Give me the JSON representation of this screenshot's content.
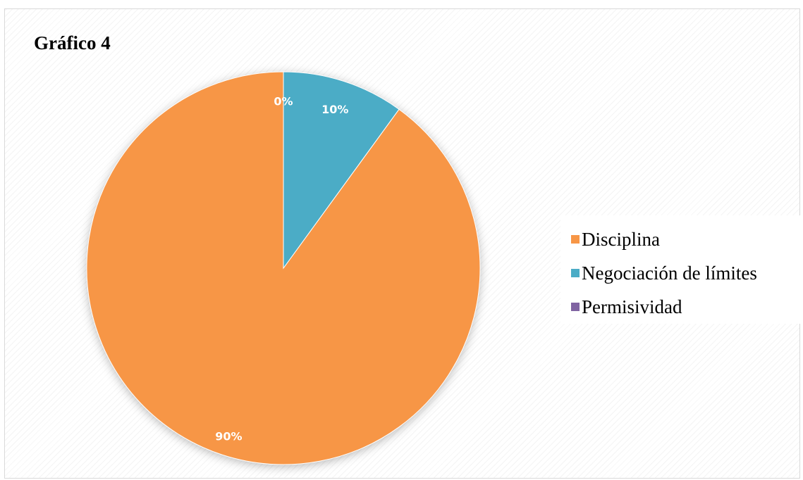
{
  "chart_data": {
    "type": "pie",
    "title": "Gráfico 4",
    "categories": [
      "Disciplina",
      "Negociación de límites",
      "Permisividad"
    ],
    "values": [
      90,
      10,
      0
    ],
    "data_labels": [
      "90%",
      "10%",
      "0%"
    ],
    "colors": [
      "#F79646",
      "#4BACC6",
      "#8064A2"
    ],
    "start_angle": "12 o'clock",
    "direction": "counter-clockwise",
    "legend_position": "right",
    "background_pattern": "diagonal-stripes"
  }
}
